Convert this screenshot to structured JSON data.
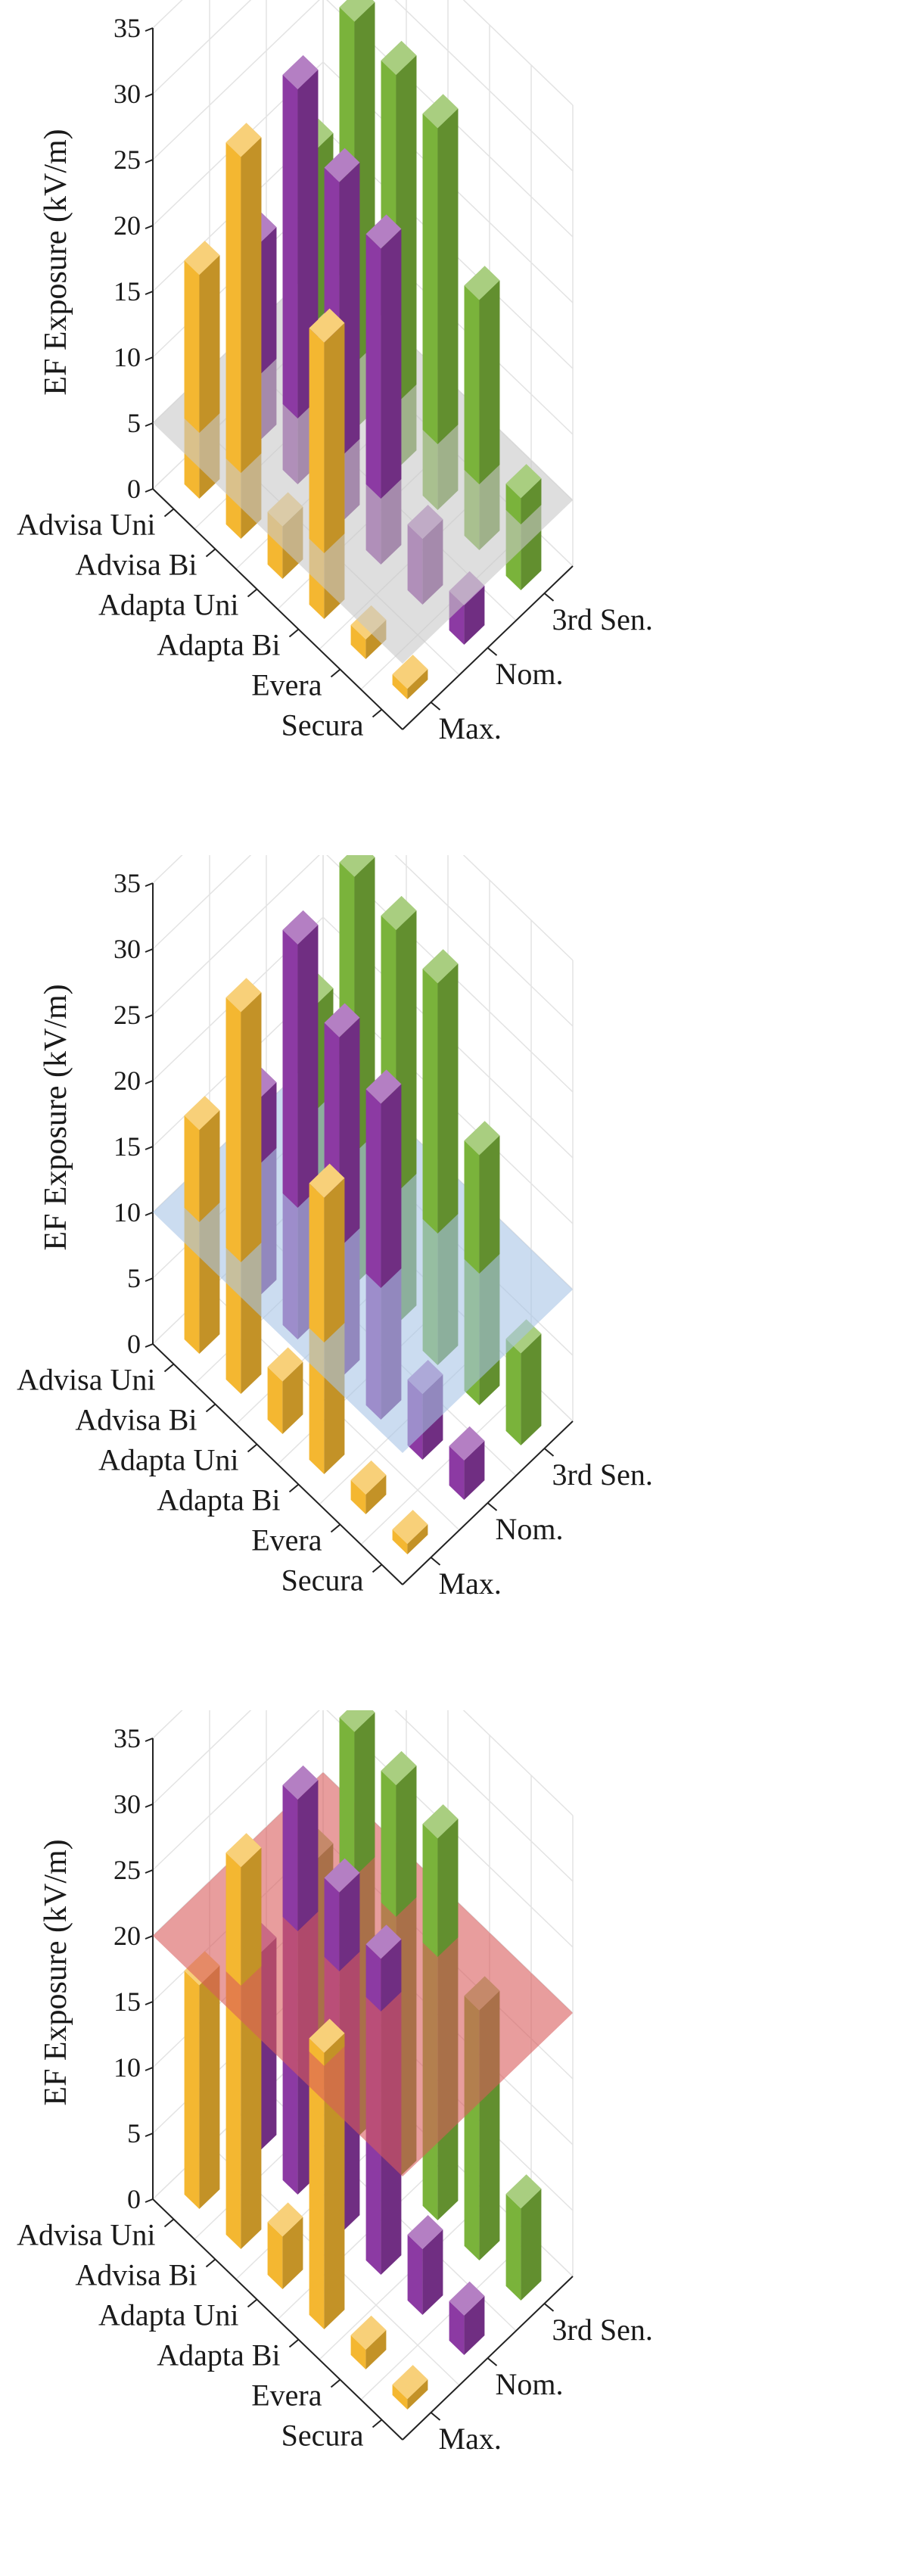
{
  "colors": {
    "Max.": "#f4b731",
    "Nom.": "#8c3aa3",
    "3rd Sen.": "#7ab33b"
  },
  "chart_data": [
    {
      "type": "bar3d",
      "ylabel": "EF Exposure (kV/m)",
      "zlim": [
        0,
        35
      ],
      "zticks": [
        "0",
        "5",
        "10",
        "15",
        "20",
        "25",
        "30",
        "35"
      ],
      "categories": [
        "Advisa Uni",
        "Advisa Bi",
        "Adapta Uni",
        "Adapta Bi",
        "Evera",
        "Secura"
      ],
      "series_labels": [
        "Max.",
        "Nom.",
        "3rd Sen."
      ],
      "series": [
        {
          "name": "Max.",
          "values": [
            17,
            29,
            4,
            21,
            1.5,
            0.8
          ]
        },
        {
          "name": "Nom.",
          "values": [
            15,
            30,
            26,
            24,
            5,
            3
          ]
        },
        {
          "name": "3rd Sen.",
          "values": [
            18,
            31,
            30,
            29,
            19,
            7
          ]
        }
      ],
      "threshold": {
        "value": 5,
        "color": "#c8c8c8"
      }
    },
    {
      "type": "bar3d",
      "ylabel": "EF Exposure (kV/m)",
      "zlim": [
        0,
        35
      ],
      "zticks": [
        "0",
        "5",
        "10",
        "15",
        "20",
        "25",
        "30",
        "35"
      ],
      "categories": [
        "Advisa Uni",
        "Advisa Bi",
        "Adapta Uni",
        "Adapta Bi",
        "Evera",
        "Secura"
      ],
      "series_labels": [
        "Max.",
        "Nom.",
        "3rd Sen."
      ],
      "series": [
        {
          "name": "Max.",
          "values": [
            17,
            29,
            4,
            21,
            1.5,
            0.8
          ]
        },
        {
          "name": "Nom.",
          "values": [
            15,
            30,
            26,
            24,
            5,
            3
          ]
        },
        {
          "name": "3rd Sen.",
          "values": [
            18,
            31,
            30,
            29,
            19,
            7
          ]
        }
      ],
      "threshold": {
        "value": 10,
        "color": "#a8c4e6"
      }
    },
    {
      "type": "bar3d",
      "ylabel": "EF Exposure (kV/m)",
      "zlim": [
        0,
        35
      ],
      "zticks": [
        "0",
        "5",
        "10",
        "15",
        "20",
        "25",
        "30",
        "35"
      ],
      "categories": [
        "Advisa Uni",
        "Advisa Bi",
        "Adapta Uni",
        "Adapta Bi",
        "Evera",
        "Secura"
      ],
      "series_labels": [
        "Max.",
        "Nom.",
        "3rd Sen."
      ],
      "series": [
        {
          "name": "Max.",
          "values": [
            17,
            29,
            4,
            21,
            1.5,
            0.8
          ]
        },
        {
          "name": "Nom.",
          "values": [
            15,
            30,
            26,
            24,
            5,
            3
          ]
        },
        {
          "name": "3rd Sen.",
          "values": [
            18,
            31,
            30,
            29,
            19,
            7
          ]
        }
      ],
      "threshold": {
        "value": 20,
        "color": "#d95c5c"
      }
    }
  ]
}
